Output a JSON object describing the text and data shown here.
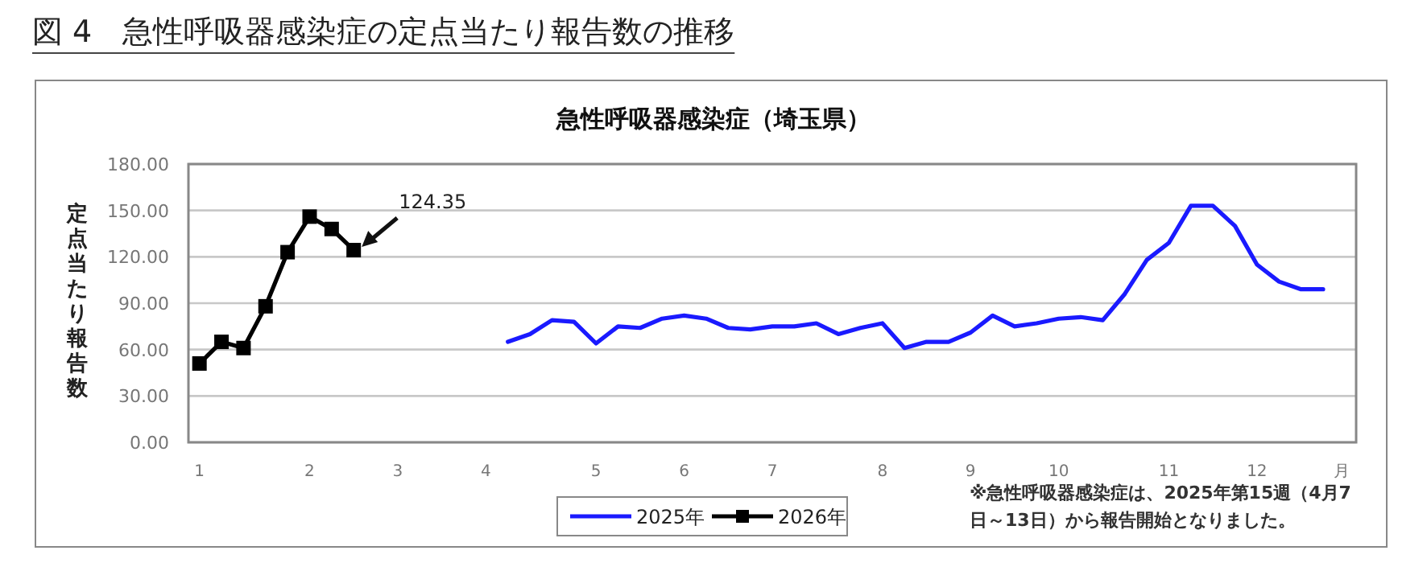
{
  "chart_data": {
    "type": "line",
    "title": "図 4　急性呼吸器感染症の定点当たり報告数の推移",
    "subtitle": "急性呼吸器感染症（埼玉県）",
    "ylabel": "定点当たり報告数",
    "xlabel": "月",
    "categories": [
      "1",
      null,
      null,
      null,
      null,
      "2",
      null,
      null,
      null,
      "3",
      null,
      null,
      null,
      "4",
      null,
      null,
      null,
      null,
      "5",
      null,
      null,
      null,
      "6",
      null,
      null,
      null,
      "7",
      null,
      null,
      null,
      null,
      "8",
      null,
      null,
      null,
      "9",
      null,
      null,
      null,
      "10",
      null,
      null,
      null,
      null,
      "11",
      null,
      null,
      null,
      "12",
      null,
      null,
      null,
      null
    ],
    "ylim": [
      0,
      180
    ],
    "yticks": [
      {
        "value": 0,
        "label": "0.00"
      },
      {
        "value": 30,
        "label": "30.00"
      },
      {
        "value": 60,
        "label": "60.00"
      },
      {
        "value": 90,
        "label": "90.00"
      },
      {
        "value": 120,
        "label": "120.00"
      },
      {
        "value": 150,
        "label": "150.00"
      },
      {
        "value": 180,
        "label": "180.00"
      }
    ],
    "grid": "y",
    "legend": "bottom",
    "series": [
      {
        "name": "2025年",
        "color": "#1a1aff",
        "marker": "none",
        "values": [
          null,
          null,
          null,
          null,
          null,
          null,
          null,
          null,
          null,
          null,
          null,
          null,
          null,
          null,
          65,
          70,
          79,
          78,
          64,
          75,
          74,
          80,
          82,
          80,
          74,
          73,
          75,
          75,
          77,
          70,
          74,
          77,
          61,
          65,
          65,
          71,
          82,
          75,
          77,
          80,
          81,
          79,
          96,
          118,
          129,
          153,
          153,
          140,
          115,
          104,
          99,
          99,
          null
        ]
      },
      {
        "name": "2026年",
        "color": "#000000",
        "marker": "square",
        "values": [
          51,
          65,
          61,
          88,
          123,
          146,
          138,
          124.35,
          null,
          null,
          null,
          null,
          null,
          null,
          null,
          null,
          null,
          null,
          null,
          null,
          null,
          null,
          null,
          null,
          null,
          null,
          null,
          null,
          null,
          null,
          null,
          null,
          null,
          null,
          null,
          null,
          null,
          null,
          null,
          null,
          null,
          null,
          null,
          null,
          null,
          null,
          null,
          null,
          null,
          null,
          null,
          null,
          null
        ]
      }
    ],
    "annotations": [
      "124.35",
      "※急性呼吸器感染症は、2025年第15週（4月7日～13日）から報告開始となりました。"
    ]
  }
}
